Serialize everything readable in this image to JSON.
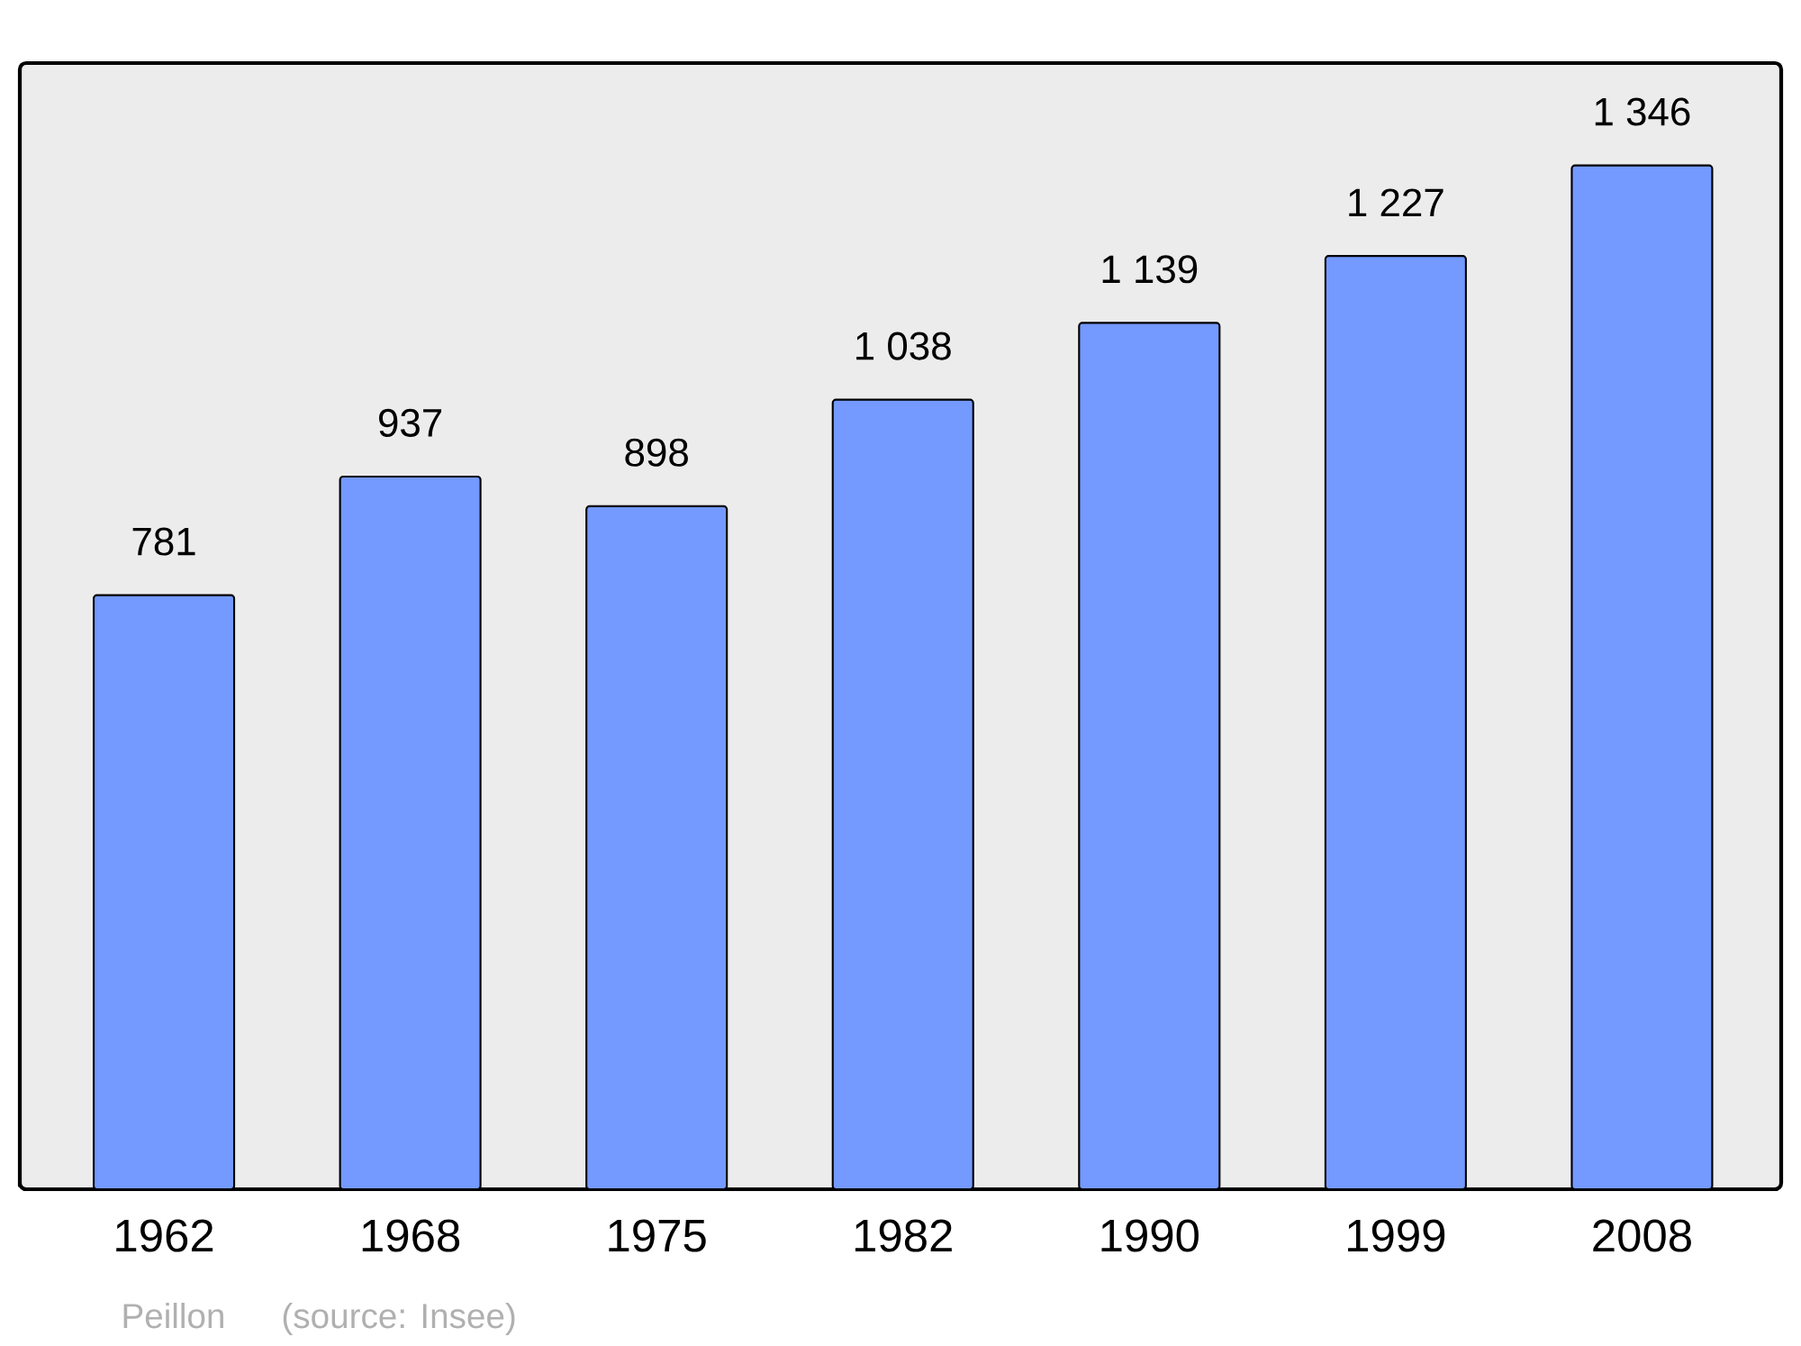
{
  "chart_data": {
    "type": "bar",
    "categories": [
      "1962",
      "1968",
      "1975",
      "1982",
      "1990",
      "1999",
      "2008"
    ],
    "values": [
      781,
      937,
      898,
      1038,
      1139,
      1227,
      1346
    ],
    "value_labels": [
      "781",
      "937",
      "898",
      "1 038",
      "1 139",
      "1 227",
      "1 346"
    ],
    "color": "#7499ff",
    "annotations": [
      "Peillon",
      "(source: Insee)"
    ]
  }
}
